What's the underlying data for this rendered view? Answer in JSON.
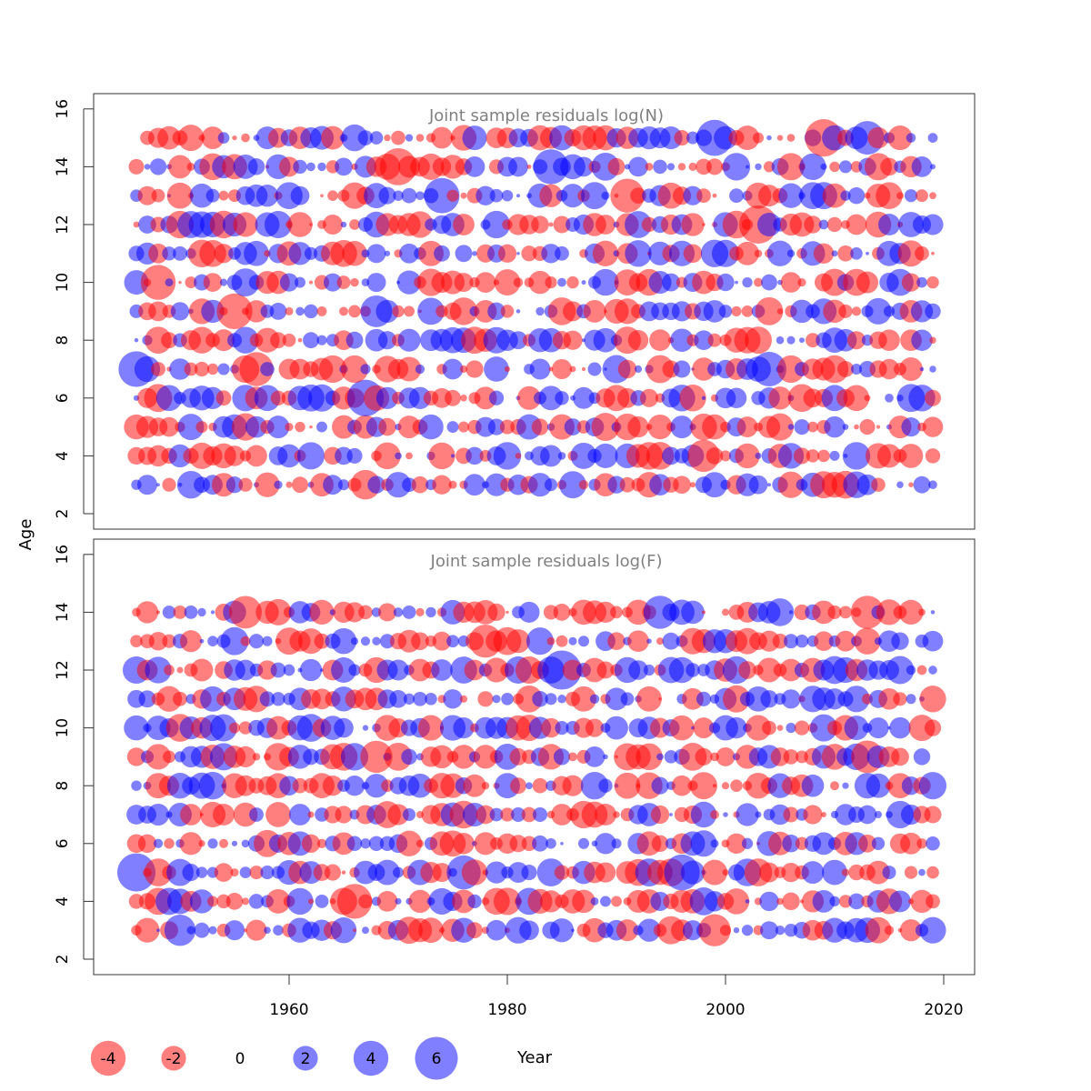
{
  "chart_data": {
    "type": "bubble-residuals",
    "y_axis_label": "Age",
    "x_axis_label": "Year",
    "x_range": [
      1945,
      2019
    ],
    "x_ticks": [
      "1960",
      "1980",
      "2000",
      "2020"
    ],
    "y_ticks": [
      "2",
      "4",
      "6",
      "8",
      "10",
      "12",
      "14",
      "16"
    ],
    "colors": {
      "positive": "#0000ff",
      "negative": "#ff0000",
      "opacity": 0.5
    },
    "panels": [
      {
        "title": "Joint sample residuals log(N)",
        "ages": [
          3,
          4,
          5,
          6,
          7,
          8,
          9,
          10,
          11,
          12,
          13,
          14,
          15
        ],
        "ylim": [
          2,
          16
        ],
        "random_seed": 7,
        "highlights": [
          {
            "year": 1946,
            "age": 7,
            "value": 4.2
          },
          {
            "year": 1948,
            "age": 10,
            "value": -4.0
          },
          {
            "year": 1955,
            "age": 9,
            "value": -4.2
          },
          {
            "year": 1957,
            "age": 7,
            "value": -3.8
          },
          {
            "year": 1967,
            "age": 6,
            "value": 4.4
          },
          {
            "year": 1968,
            "age": 9,
            "value": 3.3
          },
          {
            "year": 1970,
            "age": 14,
            "value": -4.5
          },
          {
            "year": 1974,
            "age": 13,
            "value": 4.1
          },
          {
            "year": 1984,
            "age": 14,
            "value": 4.0
          },
          {
            "year": 1991,
            "age": 13,
            "value": -3.8
          },
          {
            "year": 1999,
            "age": 15,
            "value": 4.3
          },
          {
            "year": 2003,
            "age": 12,
            "value": -4.8
          },
          {
            "year": 2004,
            "age": 7,
            "value": 3.9
          },
          {
            "year": 2009,
            "age": 15,
            "value": -4.6
          },
          {
            "year": 2013,
            "age": 15,
            "value": 3.7
          },
          {
            "year": 1998,
            "age": 4,
            "value": -3.4
          },
          {
            "year": 1967,
            "age": 3,
            "value": -2.9
          }
        ]
      },
      {
        "title": "Joint sample residuals log(F)",
        "ages": [
          3,
          4,
          5,
          6,
          7,
          8,
          9,
          10,
          11,
          12,
          13,
          14
        ],
        "ylim": [
          2,
          16
        ],
        "random_seed": 19,
        "highlights": [
          {
            "year": 1946,
            "age": 5,
            "value": 4.8
          },
          {
            "year": 1950,
            "age": 3,
            "value": 3.2
          },
          {
            "year": 1956,
            "age": 14,
            "value": -3.5
          },
          {
            "year": 1966,
            "age": 4,
            "value": -4.0
          },
          {
            "year": 1968,
            "age": 9,
            "value": -3.4
          },
          {
            "year": 1976,
            "age": 5,
            "value": 3.8
          },
          {
            "year": 1978,
            "age": 13,
            "value": -3.6
          },
          {
            "year": 1985,
            "age": 12,
            "value": 5.0
          },
          {
            "year": 1994,
            "age": 14,
            "value": 3.6
          },
          {
            "year": 1996,
            "age": 5,
            "value": 4.2
          },
          {
            "year": 2013,
            "age": 14,
            "value": -3.6
          },
          {
            "year": 2013,
            "age": 9,
            "value": -3.5
          },
          {
            "year": 1999,
            "age": 3,
            "value": -3.4
          }
        ]
      }
    ],
    "legend": [
      {
        "label": "-4",
        "value": -4
      },
      {
        "label": "-2",
        "value": -2
      },
      {
        "label": "0",
        "value": 0
      },
      {
        "label": "2",
        "value": 2
      },
      {
        "label": "4",
        "value": 4
      },
      {
        "label": "6",
        "value": 6
      }
    ]
  }
}
